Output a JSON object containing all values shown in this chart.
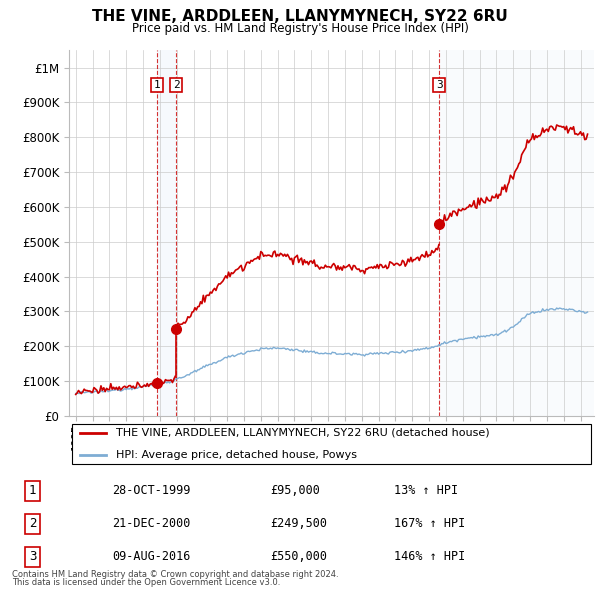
{
  "title": "THE VINE, ARDDLEEN, LLANYMYNECH, SY22 6RU",
  "subtitle": "Price paid vs. HM Land Registry's House Price Index (HPI)",
  "ylim": [
    0,
    1050000
  ],
  "yticks": [
    0,
    100000,
    200000,
    300000,
    400000,
    500000,
    600000,
    700000,
    800000,
    900000,
    1000000
  ],
  "ytick_labels": [
    "£0",
    "£100K",
    "£200K",
    "£300K",
    "£400K",
    "£500K",
    "£600K",
    "£700K",
    "£800K",
    "£900K",
    "£1M"
  ],
  "red_line_color": "#cc0000",
  "blue_line_color": "#7eadd4",
  "background_color": "#ffffff",
  "grid_color": "#cccccc",
  "legend_line1": "THE VINE, ARDDLEEN, LLANYMYNECH, SY22 6RU (detached house)",
  "legend_line2": "HPI: Average price, detached house, Powys",
  "transactions": [
    {
      "num": 1,
      "date": "28-OCT-1999",
      "price": 95000,
      "hpi_pct": "13%",
      "direction": "↑"
    },
    {
      "num": 2,
      "date": "21-DEC-2000",
      "price": 249500,
      "hpi_pct": "167%",
      "direction": "↑"
    },
    {
      "num": 3,
      "date": "09-AUG-2016",
      "price": 550000,
      "hpi_pct": "146%",
      "direction": "↑"
    }
  ],
  "transaction_years": [
    1999.83,
    2000.97,
    2016.6
  ],
  "transaction_prices": [
    95000,
    249500,
    550000
  ],
  "footnote1": "Contains HM Land Registry data © Crown copyright and database right 2024.",
  "footnote2": "This data is licensed under the Open Government Licence v3.0.",
  "xlim_start": 1994.6,
  "xlim_end": 2025.8
}
